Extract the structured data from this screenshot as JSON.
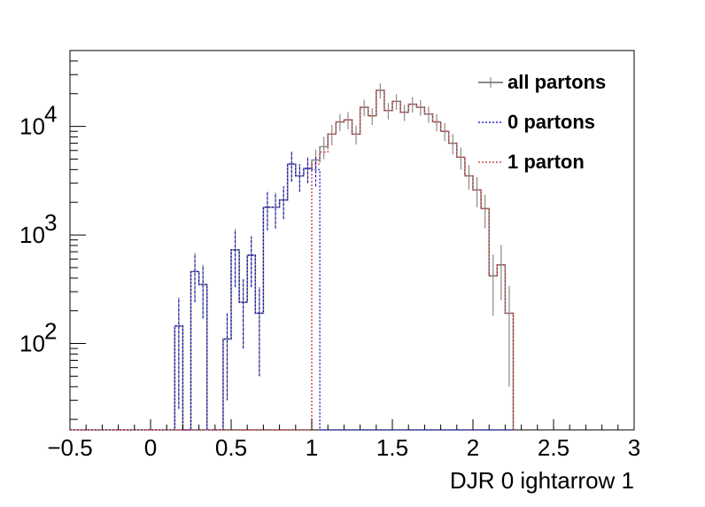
{
  "chart_data": {
    "type": "histogram",
    "xlabel": "DJR 0 ightarrow 1",
    "ylabel": "",
    "title": "",
    "xlim": [
      -0.5,
      3.0
    ],
    "ylim": [
      16,
      50000
    ],
    "y_scale": "log",
    "grid": false,
    "legend_position": "top-right",
    "x_ticks": [
      {
        "value": -0.5,
        "label": "−0.5"
      },
      {
        "value": 0,
        "label": "0"
      },
      {
        "value": 0.5,
        "label": "0.5"
      },
      {
        "value": 1,
        "label": "1"
      },
      {
        "value": 1.5,
        "label": "1.5"
      },
      {
        "value": 2,
        "label": "2"
      },
      {
        "value": 2.5,
        "label": "2.5"
      },
      {
        "value": 3,
        "label": "3"
      }
    ],
    "y_ticks": [
      {
        "value": 100,
        "base": "10",
        "exp": "2"
      },
      {
        "value": 1000,
        "base": "10",
        "exp": "3"
      },
      {
        "value": 10000,
        "base": "10",
        "exp": "4"
      }
    ],
    "bin_edges_start": -0.5,
    "bin_width": 0.05,
    "legend": [
      {
        "key": "all",
        "label": "all partons",
        "color": "#8a8a8a",
        "style": "solid"
      },
      {
        "key": "p0",
        "label": "0 partons",
        "color": "#0000cc",
        "style": "dotted"
      },
      {
        "key": "p1",
        "label": "1 parton",
        "color": "#cc2222",
        "style": "dotted"
      }
    ],
    "series": [
      {
        "name": "all partons",
        "color": "#8a8a8a",
        "style": "solid",
        "values": [
          0,
          0,
          0,
          0,
          0,
          0,
          0,
          0,
          0,
          0,
          0,
          0,
          0,
          145,
          0,
          460,
          350,
          0,
          0,
          110,
          730,
          240,
          650,
          190,
          1800,
          1800,
          2100,
          4500,
          3500,
          4100,
          4900,
          6500,
          8500,
          11000,
          11500,
          8500,
          15000,
          12500,
          21500,
          14000,
          17000,
          13500,
          16000,
          15000,
          13000,
          11000,
          9000,
          7000,
          5200,
          3500,
          2600,
          1750,
          420,
          530,
          190
        ],
        "errors": [
          0,
          0,
          0,
          0,
          0,
          0,
          0,
          0,
          0,
          0,
          0,
          0,
          0,
          120,
          0,
          220,
          180,
          0,
          0,
          80,
          400,
          150,
          320,
          140,
          700,
          650,
          700,
          1400,
          1000,
          1100,
          1200,
          1500,
          1800,
          2000,
          2100,
          1700,
          2600,
          2200,
          3500,
          2400,
          2800,
          2300,
          2600,
          2500,
          2200,
          2000,
          1700,
          1500,
          1200,
          900,
          800,
          600,
          240,
          280,
          150
        ]
      },
      {
        "name": "0 partons",
        "color": "#0000cc",
        "style": "dotted",
        "values": [
          0,
          0,
          0,
          0,
          0,
          0,
          0,
          0,
          0,
          0,
          0,
          0,
          0,
          145,
          0,
          460,
          350,
          0,
          0,
          110,
          730,
          240,
          650,
          190,
          1800,
          1800,
          2100,
          4500,
          3500,
          4100,
          4000,
          0,
          0,
          0,
          0,
          0,
          0,
          0,
          0,
          0,
          0,
          0,
          0,
          0,
          0,
          0,
          0,
          0,
          0,
          0,
          0,
          0,
          0,
          0,
          0
        ]
      },
      {
        "name": "1 parton",
        "color": "#cc2222",
        "style": "dotted",
        "values": [
          0,
          0,
          0,
          0,
          0,
          0,
          0,
          0,
          0,
          0,
          0,
          0,
          0,
          0,
          0,
          0,
          0,
          0,
          0,
          0,
          0,
          0,
          0,
          0,
          0,
          0,
          0,
          0,
          0,
          0,
          4500,
          5800,
          8500,
          11000,
          11500,
          8500,
          15000,
          12500,
          21500,
          14000,
          17000,
          13500,
          16000,
          15000,
          13000,
          11000,
          9000,
          7000,
          5200,
          3500,
          2600,
          1750,
          420,
          530,
          190
        ]
      }
    ]
  }
}
